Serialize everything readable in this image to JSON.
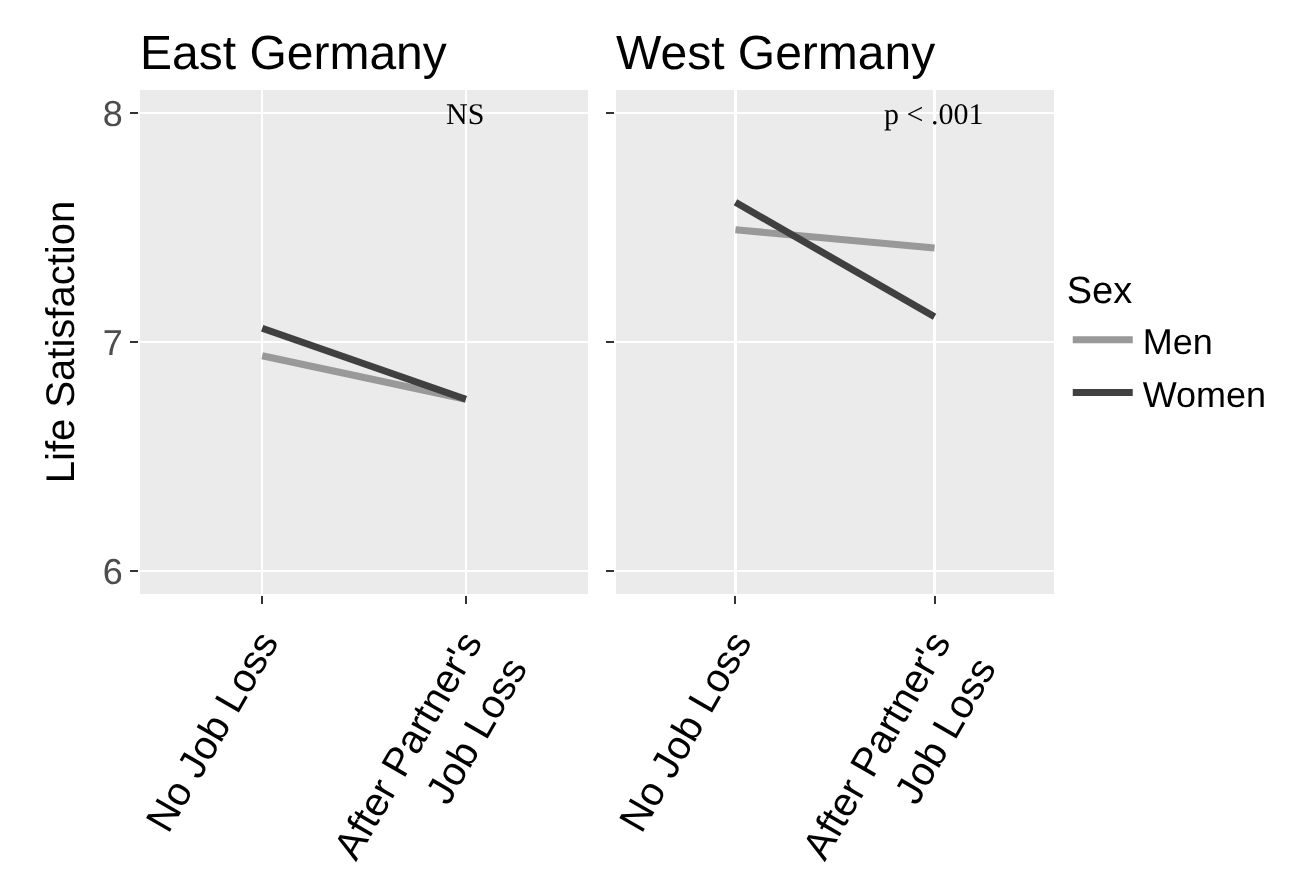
{
  "chart_data": [
    {
      "type": "line",
      "title": "East Germany",
      "ylabel": "Life Satisfaction",
      "categories": [
        "No Job Loss",
        "After Partner's Job Loss"
      ],
      "series": [
        {
          "color": "#999999",
          "values": [
            6.94,
            6.75
          ]
        },
        {
          "color": "#404040",
          "values": [
            7.06,
            6.75
          ]
        }
      ],
      "ylim": [
        5.9,
        8.1
      ],
      "yticks": [
        6,
        7,
        8
      ],
      "grid": true,
      "legend": false,
      "marker": "none",
      "annotations": [
        "NS"
      ]
    },
    {
      "type": "line",
      "title": "West Germany",
      "categories": [
        "No Job Loss",
        "After Partner's Job Loss"
      ],
      "series": [
        {
          "name": "Men",
          "color": "#999999",
          "values": [
            7.49,
            7.41
          ]
        },
        {
          "name": "Women",
          "color": "#404040",
          "values": [
            7.61,
            7.11
          ]
        }
      ],
      "ylim": [
        5.9,
        8.1
      ],
      "yticks": [
        6,
        7,
        8
      ],
      "grid": true,
      "legend": "right",
      "legend_title": "Sex",
      "marker": "none",
      "tick_labels": "x",
      "annotations": [
        "p < .001"
      ]
    }
  ]
}
